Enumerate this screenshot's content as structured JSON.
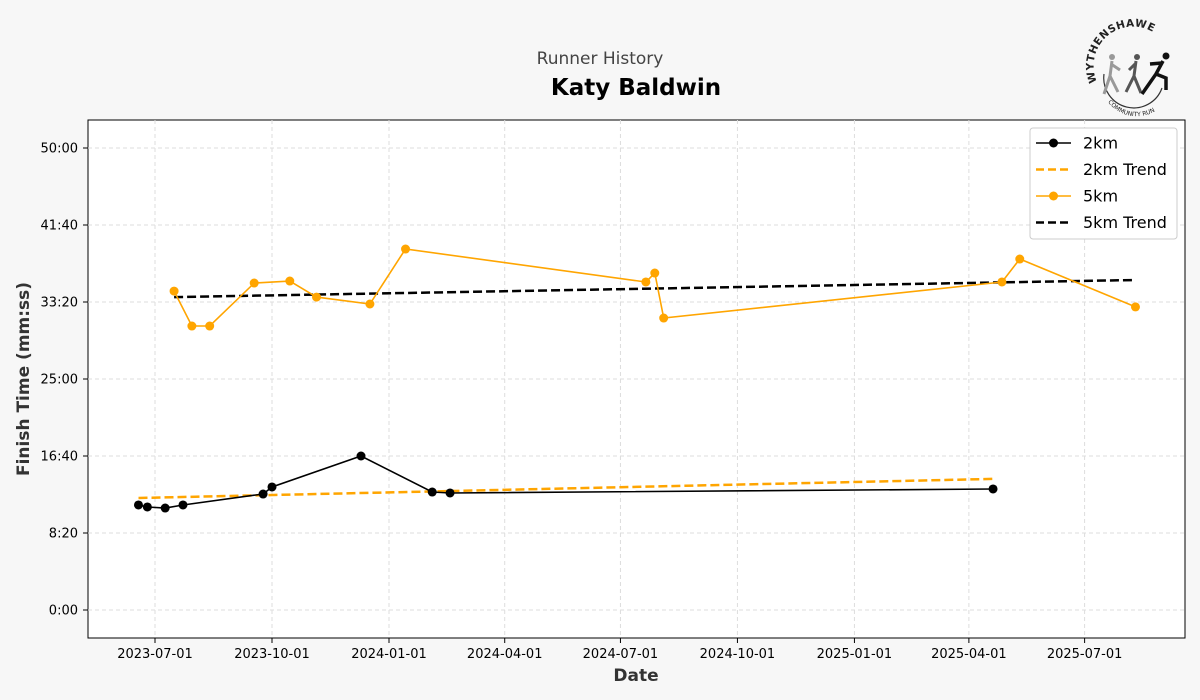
{
  "header": {
    "subtitle": "Runner History",
    "title": "Katy Baldwin"
  },
  "logo": {
    "top_text": "WYTHENSHAWE",
    "bottom_text": "COMMUNITY RUN"
  },
  "chart_data": {
    "type": "line",
    "xlabel": "Date",
    "ylabel": "Finish Time (mm:ss)",
    "x_ticks": [
      "2023-07-01",
      "2023-10-01",
      "2024-01-01",
      "2024-04-01",
      "2024-07-01",
      "2024-10-01",
      "2025-01-01",
      "2025-04-01",
      "2025-07-01"
    ],
    "y_ticks": [
      "0:00",
      "8:20",
      "16:40",
      "25:00",
      "33:20",
      "41:40",
      "50:00"
    ],
    "ylim": [
      "-3:00",
      "53:00"
    ],
    "xlim": [
      "2023-05-25",
      "2025-10-05"
    ],
    "grid": true,
    "legend_position": "top-right",
    "series": [
      {
        "name": "2km",
        "color": "#000000",
        "style": "solid-markers",
        "points": [
          {
            "x": "2023-06-18",
            "y": "11:22"
          },
          {
            "x": "2023-06-25",
            "y": "11:09"
          },
          {
            "x": "2023-07-09",
            "y": "11:02"
          },
          {
            "x": "2023-07-23",
            "y": "11:22"
          },
          {
            "x": "2023-09-24",
            "y": "12:33"
          },
          {
            "x": "2023-10-01",
            "y": "13:19"
          },
          {
            "x": "2023-12-10",
            "y": "16:40"
          },
          {
            "x": "2024-02-04",
            "y": "12:46"
          },
          {
            "x": "2024-02-18",
            "y": "12:40"
          },
          {
            "x": "2025-04-20",
            "y": "13:06"
          }
        ]
      },
      {
        "name": "2km Trend",
        "color": "#FFA500",
        "style": "dashed",
        "points": [
          {
            "x": "2023-06-18",
            "y": "12:07"
          },
          {
            "x": "2025-04-20",
            "y": "14:11"
          }
        ]
      },
      {
        "name": "5km",
        "color": "#FFA500",
        "style": "solid-markers",
        "points": [
          {
            "x": "2023-07-16",
            "y": "34:31"
          },
          {
            "x": "2023-07-30",
            "y": "30:44"
          },
          {
            "x": "2023-08-13",
            "y": "30:44"
          },
          {
            "x": "2023-09-17",
            "y": "35:23"
          },
          {
            "x": "2023-10-15",
            "y": "35:36"
          },
          {
            "x": "2023-11-05",
            "y": "33:52"
          },
          {
            "x": "2023-12-17",
            "y": "33:07"
          },
          {
            "x": "2024-01-14",
            "y": "39:04"
          },
          {
            "x": "2024-07-21",
            "y": "35:30"
          },
          {
            "x": "2024-07-28",
            "y": "36:28"
          },
          {
            "x": "2024-08-04",
            "y": "31:36"
          },
          {
            "x": "2025-04-27",
            "y": "35:30"
          },
          {
            "x": "2025-05-11",
            "y": "37:59"
          },
          {
            "x": "2025-08-10",
            "y": "32:48"
          }
        ]
      },
      {
        "name": "5km Trend",
        "color": "#000000",
        "style": "dashed",
        "points": [
          {
            "x": "2023-07-16",
            "y": "33:52"
          },
          {
            "x": "2025-08-10",
            "y": "35:43"
          }
        ]
      }
    ]
  }
}
